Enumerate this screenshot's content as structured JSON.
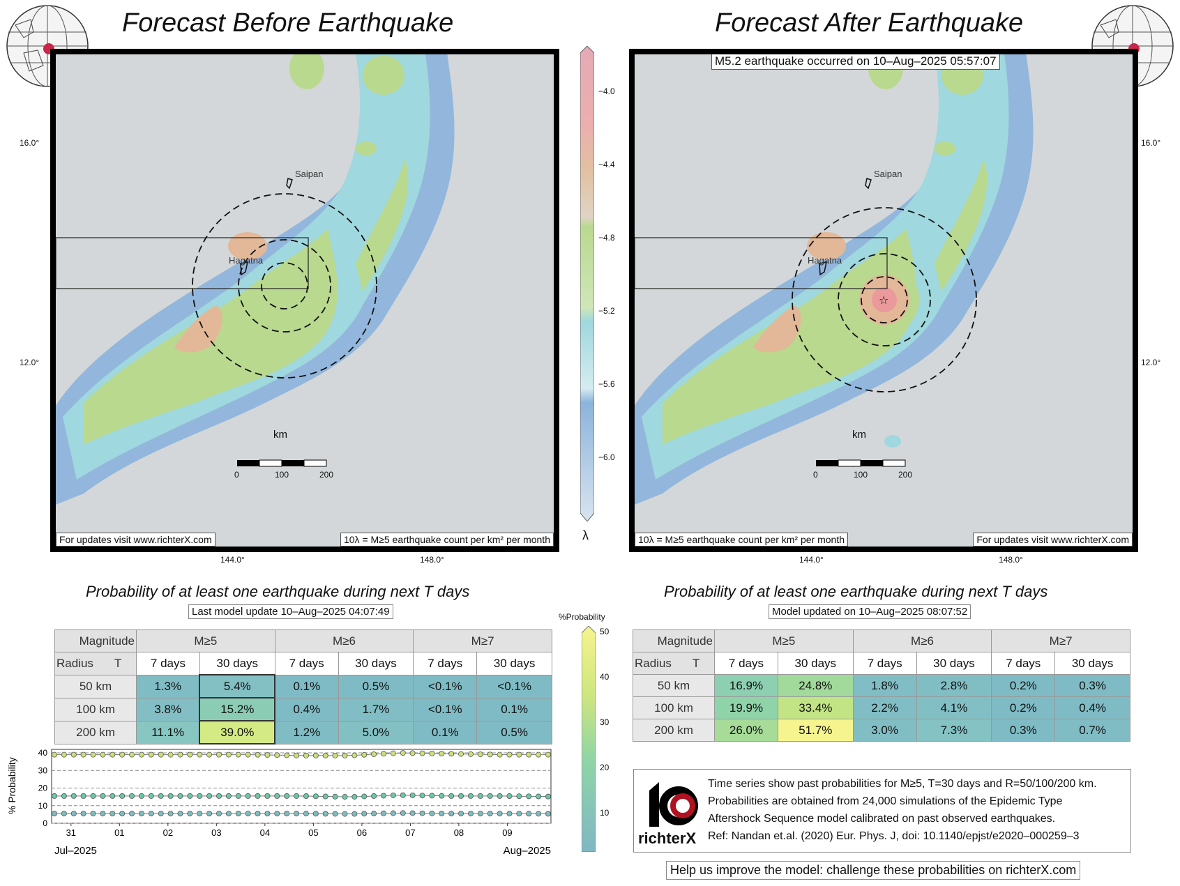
{
  "left": {
    "title": "Forecast Before Earthquake",
    "update_label": "Last model update 10–Aug–2025 04:07:49",
    "footer_url": "For updates visit www.richterX.com",
    "footer_units": "10λ = M≥5 earthquake count per km² per month"
  },
  "right": {
    "title": "Forecast After Earthquake",
    "event": "M5.2 earthquake occurred on 10–Aug–2025 05:57:07",
    "update_label": "Model updated on 10–Aug–2025 08:07:52",
    "footer_url": "For updates visit www.richterX.com",
    "footer_units": "10λ = M≥5 earthquake count per km² per month"
  },
  "map_common": {
    "lat_ticks": [
      "16.0°",
      "12.0°"
    ],
    "lon_ticks": [
      "144.0°",
      "148.0°"
    ],
    "places": [
      "Saipan",
      "Hagatna"
    ],
    "scale_unit": "km",
    "scale_ticks": [
      "0",
      "100",
      "200"
    ]
  },
  "lambda_bar": {
    "symbol": "λ",
    "ticks": [
      "−4.0",
      "−4.4",
      "−4.8",
      "−5.2",
      "−5.6",
      "−6.0"
    ]
  },
  "probability_bar": {
    "label": "%Probability",
    "ticks": [
      "50",
      "40",
      "30",
      "20",
      "10"
    ]
  },
  "table_common": {
    "title": "Probability of at least one earthquake during next T days",
    "magnitude_label": "Magnitude",
    "radius_label": "Radius",
    "t_label": "T",
    "magnitudes": [
      "M≥5",
      "M≥6",
      "M≥7"
    ],
    "periods": [
      "7 days",
      "30 days",
      "7 days",
      "30 days",
      "7 days",
      "30 days"
    ],
    "radii": [
      "50 km",
      "100 km",
      "200 km"
    ]
  },
  "table_before": [
    [
      "1.3%",
      "5.4%",
      "0.1%",
      "0.5%",
      "<0.1%",
      "<0.1%"
    ],
    [
      "3.8%",
      "15.2%",
      "0.4%",
      "1.7%",
      "<0.1%",
      "0.1%"
    ],
    [
      "11.1%",
      "39.0%",
      "1.2%",
      "5.0%",
      "0.1%",
      "0.5%"
    ]
  ],
  "table_after": [
    [
      "16.9%",
      "24.8%",
      "1.8%",
      "2.8%",
      "0.2%",
      "0.3%"
    ],
    [
      "19.9%",
      "33.4%",
      "2.2%",
      "4.1%",
      "0.2%",
      "0.4%"
    ],
    [
      "26.0%",
      "51.7%",
      "3.0%",
      "7.3%",
      "0.3%",
      "0.7%"
    ]
  ],
  "table_before_num": [
    [
      1.3,
      5.4,
      0.1,
      0.5,
      0.05,
      0.05
    ],
    [
      3.8,
      15.2,
      0.4,
      1.7,
      0.05,
      0.1
    ],
    [
      11.1,
      39.0,
      1.2,
      5.0,
      0.1,
      0.5
    ]
  ],
  "table_after_num": [
    [
      16.9,
      24.8,
      1.8,
      2.8,
      0.2,
      0.3
    ],
    [
      19.9,
      33.4,
      2.2,
      4.1,
      0.2,
      0.4
    ],
    [
      26.0,
      51.7,
      3.0,
      7.3,
      0.3,
      0.7
    ]
  ],
  "chart_data": {
    "type": "line",
    "ylabel": "% Probability",
    "ylim": [
      0,
      42
    ],
    "yticks": [
      "40",
      "30",
      "20",
      "10",
      "0"
    ],
    "x_day_labels": [
      "31",
      "01",
      "02",
      "03",
      "04",
      "05",
      "06",
      "07",
      "08",
      "09"
    ],
    "x_month_start": "Jul–2025",
    "x_month_end": "Aug–2025",
    "x_range": [
      "2025-07-30",
      "2025-08-10"
    ],
    "grid": "dashed horizontal",
    "series": [
      {
        "values": [
          39.0,
          39.0,
          39.0,
          39.0,
          39.0,
          38.5,
          38.5,
          40.0,
          39.5,
          39.0,
          39.0
        ]
      },
      {
        "values": [
          15.5,
          15.5,
          15.5,
          15.5,
          15.5,
          15.5,
          15.0,
          16.0,
          15.5,
          15.5,
          15.2
        ]
      },
      {
        "values": [
          5.5,
          5.5,
          5.5,
          5.5,
          5.5,
          5.5,
          5.3,
          5.8,
          5.5,
          5.5,
          5.4
        ]
      }
    ],
    "series_colors": [
      "#c9e07a",
      "#6cc7a5",
      "#7fbcbf"
    ]
  },
  "info": {
    "logo_text": "richterX",
    "lines": [
      "Time series show past probabilities for M≥5, T=30 days and R=50/100/200 km.",
      "Probabilities are obtained from 24,000 simulations of the Epidemic Type",
      "Aftershock Sequence model calibrated on past observed earthquakes.",
      "Ref: Nandan et.al. (2020) Eur. Phys. J, doi: 10.1140/epjst/e2020–000259–3"
    ],
    "help": "Help us improve the model: challenge these probabilities on richterX.com"
  },
  "colors": {
    "land_gray": "#d4d7d9",
    "blue": "#8cb4dc",
    "cyan": "#9fd8de",
    "green": "#b9d98f",
    "orange": "#e2b898",
    "red": "#ea9a9a",
    "low_prob": "#86c0c4",
    "mid_prob": "#8fd4a8",
    "high_prob": "#f3f28e"
  }
}
